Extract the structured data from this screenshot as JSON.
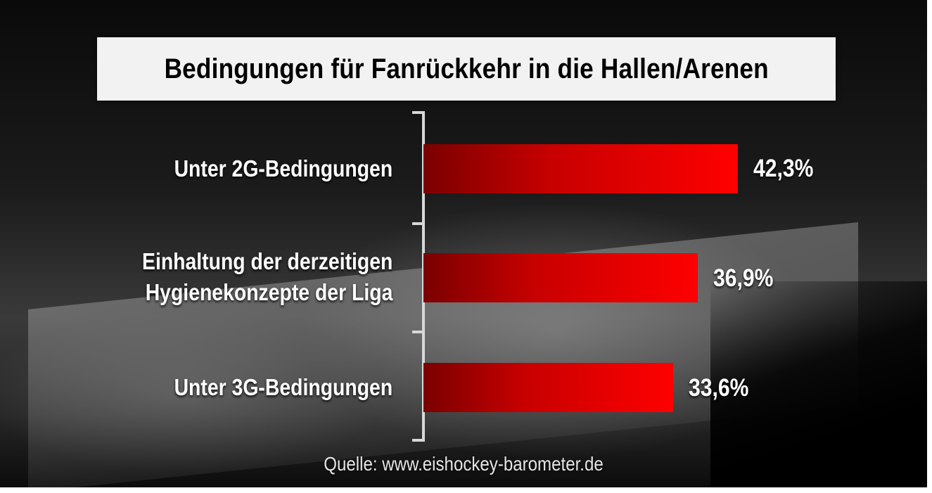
{
  "chart_data": {
    "type": "bar",
    "orientation": "horizontal",
    "title": "Bedingungen für Fanrückkehr in die Hallen/Arenen",
    "categories": [
      [
        "Unter 2G-Bedingungen"
      ],
      [
        "Einhaltung der derzeitigen",
        "Hygienekonzepte der Liga"
      ],
      [
        "Unter 3G-Bedingungen"
      ]
    ],
    "values": [
      42.3,
      36.9,
      33.6
    ],
    "value_labels": [
      "42,3%",
      "36,9%",
      "33,6%"
    ],
    "unit": "%",
    "bar_color": "#ff0000",
    "source": "Quelle: www.eishockey-barometer.de"
  }
}
